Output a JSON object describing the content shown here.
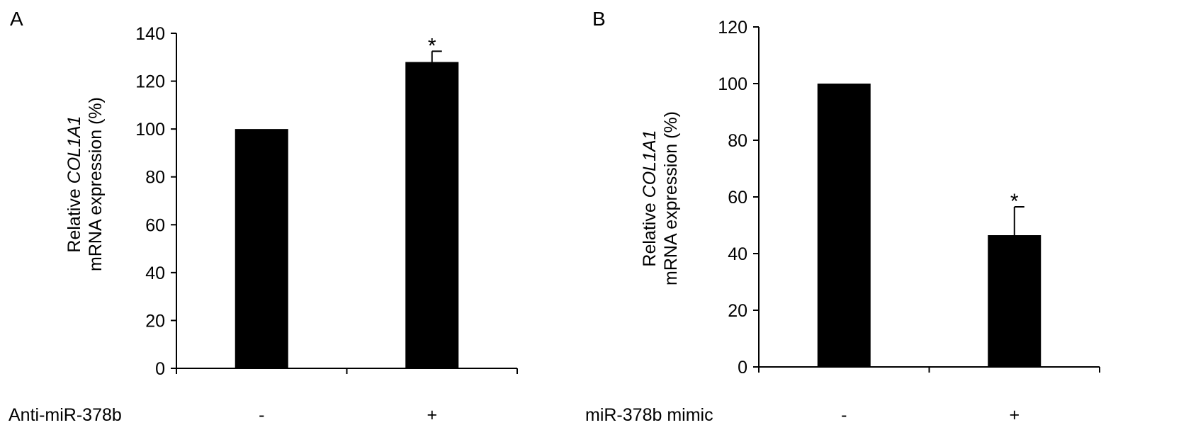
{
  "chart_data": [
    {
      "type": "bar",
      "panel_label": "A",
      "ylabel_line1_pre": "Relative ",
      "ylabel_line1_gene": "COL1A1",
      "ylabel_line2": "mRNA expression (%)",
      "row_label": "Anti-miR-378b",
      "categories": [
        "-",
        "+"
      ],
      "values": [
        100,
        128
      ],
      "errors": [
        0,
        4.5
      ],
      "significance": [
        "",
        "*"
      ],
      "ylim": [
        0,
        140
      ],
      "yticks": [
        0,
        20,
        40,
        60,
        80,
        100,
        120,
        140
      ],
      "bar_color": "#000000",
      "grid": false
    },
    {
      "type": "bar",
      "panel_label": "B",
      "ylabel_line1_pre": "Relative ",
      "ylabel_line1_gene": "COL1A1",
      "ylabel_line2": "mRNA expression (%)",
      "row_label": "miR-378b mimic",
      "categories": [
        "-",
        "+"
      ],
      "values": [
        100,
        46.5
      ],
      "errors": [
        0,
        10
      ],
      "significance": [
        "",
        "*"
      ],
      "ylim": [
        0,
        120
      ],
      "yticks": [
        0,
        20,
        40,
        60,
        80,
        100,
        120
      ],
      "bar_color": "#000000",
      "grid": false
    }
  ]
}
